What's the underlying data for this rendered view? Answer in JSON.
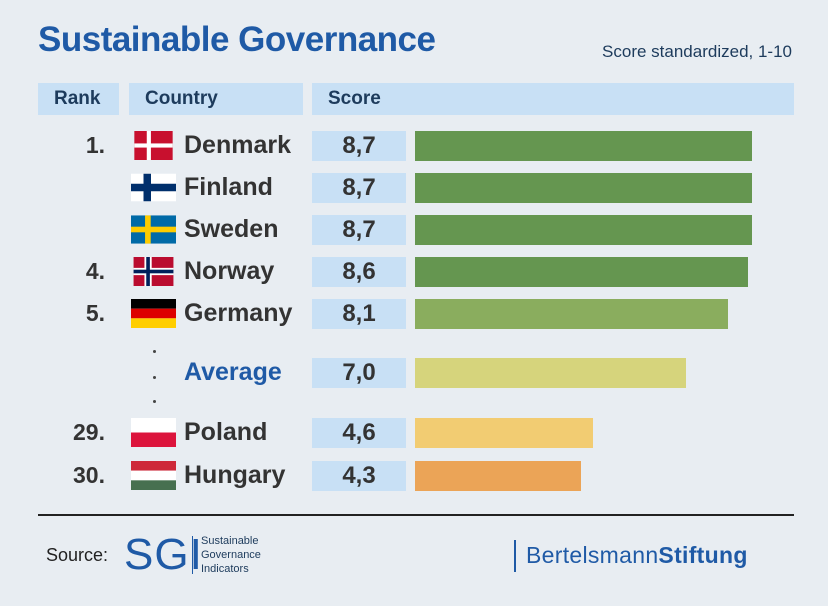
{
  "title": "Sustainable Governance",
  "subtitle": "Score standardized, 1-10",
  "headers": {
    "rank": "Rank",
    "country": "Country",
    "score": "Score"
  },
  "chart_data": {
    "type": "bar",
    "orientation": "horizontal",
    "title": "Sustainable Governance",
    "subtitle": "Score standardized, 1-10",
    "xlim": [
      0,
      10
    ],
    "rows": [
      {
        "rank": "1.",
        "country": "Denmark",
        "score": 8.7,
        "label": "8,7",
        "flag": "denmark",
        "color": "#659650"
      },
      {
        "rank": "",
        "country": "Finland",
        "score": 8.7,
        "label": "8,7",
        "flag": "finland",
        "color": "#659650"
      },
      {
        "rank": "",
        "country": "Sweden",
        "score": 8.7,
        "label": "8,7",
        "flag": "sweden",
        "color": "#659650"
      },
      {
        "rank": "4.",
        "country": "Norway",
        "score": 8.6,
        "label": "8,6",
        "flag": "norway",
        "color": "#659650"
      },
      {
        "rank": "5.",
        "country": "Germany",
        "score": 8.1,
        "label": "8,1",
        "flag": "germany",
        "color": "#8aad5e"
      },
      {
        "rank": "",
        "country": "Average",
        "score": 7.0,
        "label": "7,0",
        "flag": "",
        "color": "#d6d47c",
        "is_average": true
      },
      {
        "rank": "29.",
        "country": "Poland",
        "score": 4.6,
        "label": "4,6",
        "flag": "poland",
        "color": "#f2cc72"
      },
      {
        "rank": "30.",
        "country": "Hungary",
        "score": 4.3,
        "label": "4,3",
        "flag": "hungary",
        "color": "#eba457"
      }
    ]
  },
  "footer": {
    "source_label": "Source:",
    "sgi_mark": "SGI",
    "sgi_lines": [
      "Sustainable",
      "Governance",
      "Indicators"
    ],
    "publisher_light": "Bertelsmann",
    "publisher_bold": "Stiftung"
  }
}
